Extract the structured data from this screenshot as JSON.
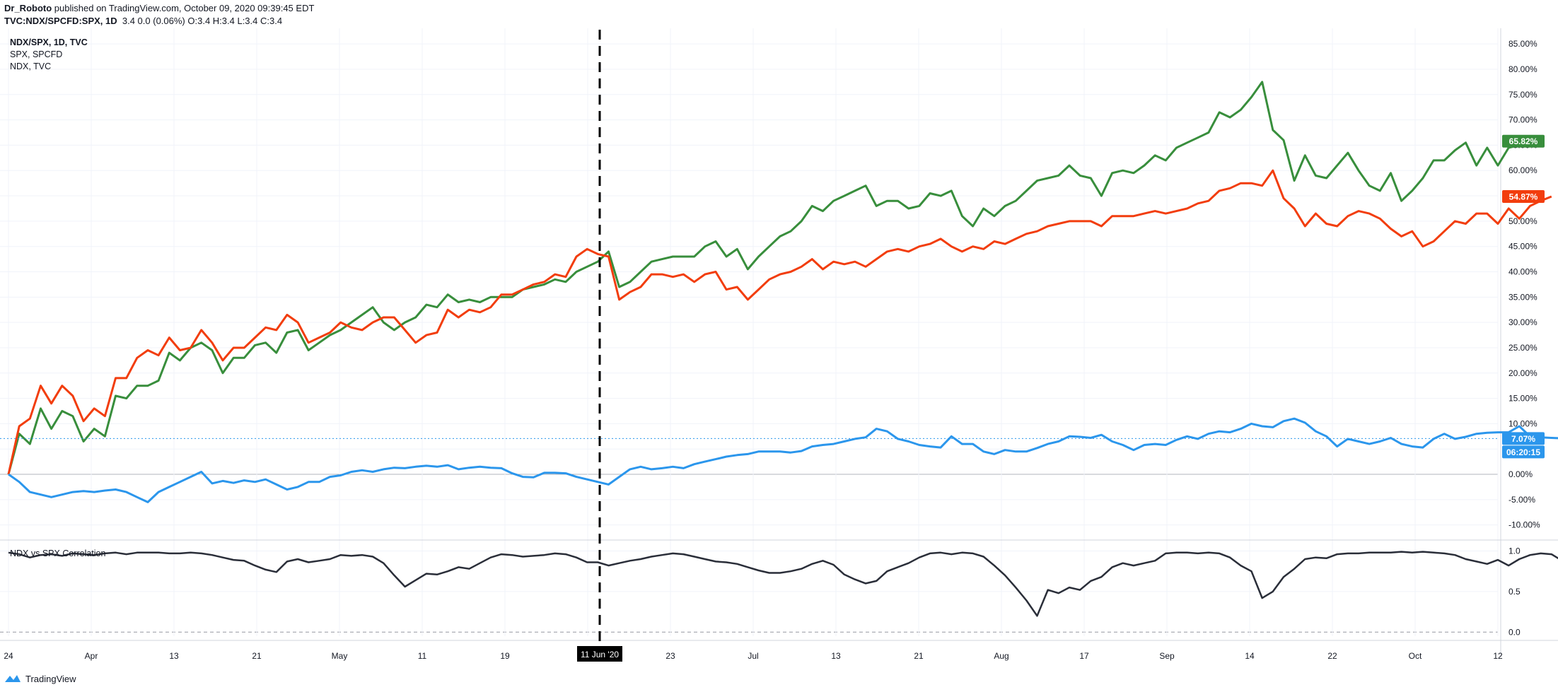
{
  "header": {
    "author": "Dr_Roboto",
    "published": "published on TradingView.com, October 09, 2020 09:39:45 EDT",
    "symbol": "TVC:NDX/SPCFD:SPX, 1D",
    "ohlc": "3.4 0.0 (0.06%) O:3.4 H:3.4 L:3.4 C:3.4"
  },
  "legend": {
    "main": "NDX/SPX, 1D, TVC",
    "spx": "SPX, SPCFD",
    "ndx": "NDX, TVC",
    "correlation": "NDX vs SPX Correlation"
  },
  "footer": {
    "brand": "TradingView"
  },
  "colors": {
    "ndx": "#388e3c",
    "spx": "#f23d0d",
    "ratio": "#2b96ec",
    "corr": "#2a2e39",
    "grid": "#f0f3fa",
    "axis_text": "#131722"
  },
  "crosshair_date": "11 Jun '20",
  "price_labels": {
    "ndx": "65.82%",
    "spx": "54.87%",
    "ratio": "7.07%",
    "countdown": "06:20:15"
  },
  "chart_data": [
    {
      "type": "line",
      "title": "NDX/SPX, 1D, TVC",
      "x_ticks": [
        "24",
        "Apr",
        "13",
        "21",
        "May",
        "11",
        "19",
        "Jun",
        "23",
        "Jul",
        "13",
        "21",
        "Aug",
        "17",
        "Sep",
        "14",
        "22",
        "Oct",
        "12"
      ],
      "y_ticks": [
        "85.00%",
        "80.00%",
        "75.00%",
        "70.00%",
        "65.00%",
        "60.00%",
        "55.00%",
        "50.00%",
        "45.00%",
        "40.00%",
        "35.00%",
        "30.00%",
        "25.00%",
        "20.00%",
        "15.00%",
        "10.00%",
        "5.00%",
        "0.00%",
        "-5.00%",
        "-10.00%"
      ],
      "ylim": [
        -12,
        86
      ],
      "x_index_range": [
        0,
        139
      ],
      "grid": true,
      "series": [
        {
          "name": "NDX, TVC",
          "values": [
            0,
            8,
            6,
            13,
            9,
            12.5,
            11.5,
            6.5,
            9,
            7.5,
            15.5,
            15,
            17.5,
            17.5,
            18.5,
            24,
            22.5,
            25,
            26,
            24.5,
            20,
            23,
            23,
            25.5,
            26,
            24,
            28,
            28.5,
            24.5,
            26,
            27.5,
            28.5,
            30,
            31.5,
            33,
            30,
            28.5,
            30,
            31,
            33.5,
            33,
            35.5,
            34,
            34.5,
            34,
            35,
            35,
            35,
            36.5,
            37,
            37.5,
            38.5,
            38,
            40,
            41,
            42,
            44,
            37,
            38,
            40,
            42,
            42.5,
            43,
            43,
            43,
            45,
            46,
            43,
            44.5,
            40.5,
            43,
            45,
            47,
            48,
            50,
            53,
            52,
            54,
            55,
            56,
            57,
            53,
            54,
            54,
            52.5,
            53,
            55.5,
            55,
            56,
            51,
            49,
            52.5,
            51,
            53,
            54,
            56,
            58,
            58.5,
            59,
            61,
            59,
            58.5,
            55,
            59.5,
            60,
            59.5,
            61,
            63,
            62,
            64.5,
            65.5,
            66.5,
            67.5,
            71.5,
            70.5,
            72,
            74.5,
            77.5,
            68,
            66,
            58,
            63,
            59,
            58.5,
            61,
            63.5,
            60,
            57,
            56,
            59.5,
            54,
            56,
            58.5,
            62,
            62,
            64,
            65.5,
            61,
            64.5,
            61,
            64.5,
            65,
            65.8
          ]
        },
        {
          "name": "SPX, SPCFD",
          "values": [
            0,
            9.5,
            11,
            17.5,
            14,
            17.5,
            15.5,
            10.5,
            13,
            11.5,
            19,
            19,
            23,
            24.5,
            23.5,
            27,
            24.5,
            25,
            28.5,
            26,
            22.5,
            25,
            25,
            27,
            29,
            28.5,
            31.5,
            30,
            26,
            27,
            28,
            30,
            29,
            28.5,
            30,
            31,
            31,
            28.5,
            26,
            27.5,
            28,
            32.5,
            31,
            32.5,
            32,
            33,
            35.5,
            35.5,
            36.5,
            37.5,
            38,
            39.5,
            39,
            43,
            44.5,
            43.5,
            43,
            34.5,
            36,
            37,
            39.5,
            39.5,
            39,
            39.5,
            38,
            39.5,
            40,
            36.5,
            37,
            34.5,
            36.5,
            38.5,
            39.5,
            40,
            41,
            42.5,
            40.5,
            42,
            41.5,
            42,
            41,
            42.5,
            44,
            44.5,
            44,
            45,
            45.5,
            46.5,
            45,
            44,
            45,
            44.5,
            46,
            45.5,
            46.5,
            47.5,
            48,
            49,
            49.5,
            50,
            50,
            50,
            49,
            51,
            51,
            51,
            51.5,
            52,
            51.5,
            52,
            52.5,
            53.5,
            54,
            56,
            56.5,
            57.5,
            57.5,
            57,
            60,
            54.5,
            52.5,
            49,
            51.5,
            49.5,
            49,
            51,
            52,
            51.5,
            50.5,
            48.5,
            47,
            48,
            45,
            46,
            48,
            50,
            49.5,
            51.5,
            51.5,
            49.5,
            52.5,
            50.5,
            53,
            54,
            54.87
          ]
        },
        {
          "name": "NDX/SPX",
          "values": [
            0,
            -1.5,
            -3.5,
            -4,
            -4.5,
            -4,
            -3.5,
            -3.3,
            -3.5,
            -3.2,
            -3,
            -3.5,
            -4.5,
            -5.5,
            -3.5,
            -2.5,
            -1.5,
            -0.5,
            0.5,
            -1.8,
            -1.3,
            -1.7,
            -1.2,
            -1.5,
            -1,
            -2,
            -3,
            -2.5,
            -1.5,
            -1.5,
            -0.5,
            -0.2,
            0.5,
            0.8,
            0.5,
            1,
            1.3,
            1.2,
            1.5,
            1.7,
            1.5,
            1.8,
            1,
            1.3,
            1.5,
            1.3,
            1.2,
            0.2,
            -0.5,
            -0.6,
            0.3,
            0.3,
            0.2,
            -0.5,
            -1,
            -1.5,
            -2,
            -0.5,
            1,
            1.5,
            1,
            1.2,
            1.5,
            1.2,
            2,
            2.5,
            3,
            3.5,
            3.8,
            4,
            4.5,
            4.5,
            4.5,
            4.3,
            4.6,
            5.5,
            5.8,
            6,
            6.5,
            7,
            7.3,
            9,
            8.5,
            7,
            6.5,
            5.8,
            5.5,
            5.3,
            7.5,
            6,
            6,
            4.5,
            4,
            4.8,
            4.5,
            4.5,
            5.2,
            6,
            6.5,
            7.5,
            7.4,
            7.2,
            7.8,
            6.5,
            5.8,
            4.8,
            5.8,
            6,
            5.8,
            6.8,
            7.5,
            7,
            8,
            8.5,
            8.3,
            9,
            10,
            9.5,
            9.3,
            10.5,
            11,
            10.2,
            8.5,
            7.5,
            5.5,
            7,
            6.5,
            6,
            6.5,
            7.2,
            6,
            5.5,
            5.3,
            7,
            8,
            7,
            7.4,
            8,
            8.2,
            8.3,
            8.3,
            9.5,
            7.5,
            7.3,
            7.2,
            7.1,
            7.07
          ]
        }
      ]
    },
    {
      "type": "line",
      "title": "NDX vs SPX Correlation",
      "y_ticks": [
        "1.0",
        "0.5",
        "0.0"
      ],
      "ylim": [
        -0.05,
        1.1
      ],
      "x_index_range": [
        0,
        139
      ],
      "series": [
        {
          "name": "NDX vs SPX Correlation",
          "values": [
            0.98,
            0.96,
            0.92,
            0.95,
            0.96,
            0.94,
            0.97,
            0.96,
            0.95,
            0.97,
            0.98,
            0.96,
            0.98,
            0.98,
            0.98,
            0.97,
            0.97,
            0.98,
            0.97,
            0.95,
            0.92,
            0.89,
            0.88,
            0.82,
            0.77,
            0.74,
            0.87,
            0.9,
            0.86,
            0.88,
            0.9,
            0.95,
            0.94,
            0.95,
            0.93,
            0.85,
            0.7,
            0.56,
            0.64,
            0.72,
            0.71,
            0.75,
            0.8,
            0.78,
            0.85,
            0.92,
            0.96,
            0.95,
            0.93,
            0.94,
            0.95,
            0.97,
            0.96,
            0.92,
            0.86,
            0.86,
            0.82,
            0.85,
            0.88,
            0.9,
            0.93,
            0.95,
            0.97,
            0.96,
            0.93,
            0.9,
            0.87,
            0.86,
            0.84,
            0.8,
            0.76,
            0.73,
            0.73,
            0.75,
            0.78,
            0.84,
            0.88,
            0.83,
            0.71,
            0.65,
            0.6,
            0.63,
            0.75,
            0.8,
            0.85,
            0.92,
            0.97,
            0.98,
            0.96,
            0.98,
            0.97,
            0.93,
            0.82,
            0.7,
            0.55,
            0.39,
            0.2,
            0.52,
            0.48,
            0.55,
            0.52,
            0.63,
            0.68,
            0.8,
            0.85,
            0.82,
            0.85,
            0.88,
            0.97,
            0.98,
            0.98,
            0.97,
            0.98,
            0.97,
            0.92,
            0.82,
            0.75,
            0.42,
            0.5,
            0.68,
            0.78,
            0.9,
            0.92,
            0.91,
            0.96,
            0.97,
            0.97,
            0.98,
            0.98,
            0.98,
            0.99,
            0.98,
            0.99,
            0.98,
            0.97,
            0.95,
            0.9,
            0.87,
            0.84,
            0.89,
            0.82,
            0.9,
            0.95,
            0.97,
            0.96,
            0.88,
            0.85
          ]
        }
      ]
    }
  ]
}
